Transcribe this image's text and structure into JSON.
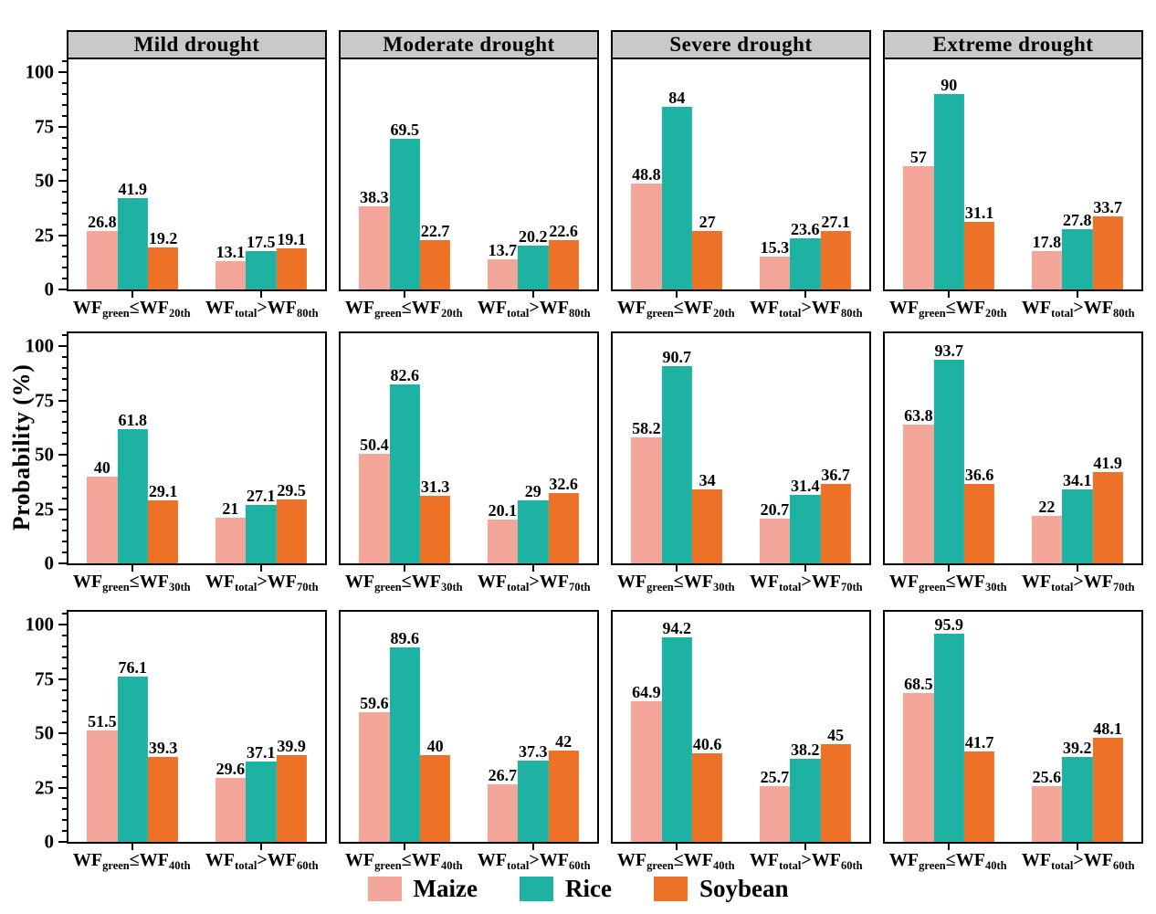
{
  "ylabel": "Probability (%)",
  "colors": {
    "maize": "#F4A69A",
    "rice": "#1DB2A2",
    "soybean": "#ED7127",
    "header_bg": "#C9C9C9",
    "border": "#000000"
  },
  "legend": [
    {
      "label": "Maize",
      "color": "#F4A69A"
    },
    {
      "label": "Rice",
      "color": "#1DB2A2"
    },
    {
      "label": "Soybean",
      "color": "#ED7127"
    }
  ],
  "column_titles": [
    "Mild drought",
    "Moderate drought",
    "Severe drought",
    "Extreme drought"
  ],
  "y_axis": {
    "major_ticks": [
      0,
      25,
      50,
      75,
      100
    ],
    "minor_step": 5,
    "tick_max": 105,
    "ylim": [
      0,
      106
    ]
  },
  "chart_data": [
    {
      "type": "bar",
      "row": 0,
      "col": 0,
      "title": "Mild drought",
      "ylim": [
        0,
        106
      ],
      "categories": [
        {
          "lhs_base": "WF",
          "lhs_sub": "green",
          "operator": "≤",
          "rhs_base": "WF",
          "rhs_sub": "20th"
        },
        {
          "lhs_base": "WF",
          "lhs_sub": "total",
          "operator": ">",
          "rhs_base": "WF",
          "rhs_sub": "80th"
        }
      ],
      "series": [
        {
          "name": "Maize",
          "values": [
            26.8,
            13.1
          ]
        },
        {
          "name": "Rice",
          "values": [
            41.9,
            17.5
          ]
        },
        {
          "name": "Soybean",
          "values": [
            19.2,
            19.1
          ]
        }
      ]
    },
    {
      "type": "bar",
      "row": 0,
      "col": 1,
      "title": "Moderate drought",
      "ylim": [
        0,
        106
      ],
      "categories": [
        {
          "lhs_base": "WF",
          "lhs_sub": "green",
          "operator": "≤",
          "rhs_base": "WF",
          "rhs_sub": "20th"
        },
        {
          "lhs_base": "WF",
          "lhs_sub": "total",
          "operator": ">",
          "rhs_base": "WF",
          "rhs_sub": "80th"
        }
      ],
      "series": [
        {
          "name": "Maize",
          "values": [
            38.3,
            13.7
          ]
        },
        {
          "name": "Rice",
          "values": [
            69.5,
            20.2
          ]
        },
        {
          "name": "Soybean",
          "values": [
            22.7,
            22.6
          ]
        }
      ]
    },
    {
      "type": "bar",
      "row": 0,
      "col": 2,
      "title": "Severe drought",
      "ylim": [
        0,
        106
      ],
      "categories": [
        {
          "lhs_base": "WF",
          "lhs_sub": "green",
          "operator": "≤",
          "rhs_base": "WF",
          "rhs_sub": "20th"
        },
        {
          "lhs_base": "WF",
          "lhs_sub": "total",
          "operator": ">",
          "rhs_base": "WF",
          "rhs_sub": "80th"
        }
      ],
      "series": [
        {
          "name": "Maize",
          "values": [
            48.8,
            15.3
          ]
        },
        {
          "name": "Rice",
          "values": [
            84,
            23.6
          ]
        },
        {
          "name": "Soybean",
          "values": [
            27,
            27.1
          ]
        }
      ]
    },
    {
      "type": "bar",
      "row": 0,
      "col": 3,
      "title": "Extreme drought",
      "ylim": [
        0,
        106
      ],
      "categories": [
        {
          "lhs_base": "WF",
          "lhs_sub": "green",
          "operator": "≤",
          "rhs_base": "WF",
          "rhs_sub": "20th"
        },
        {
          "lhs_base": "WF",
          "lhs_sub": "total",
          "operator": ">",
          "rhs_base": "WF",
          "rhs_sub": "80th"
        }
      ],
      "series": [
        {
          "name": "Maize",
          "values": [
            57,
            17.8
          ]
        },
        {
          "name": "Rice",
          "values": [
            90,
            27.8
          ]
        },
        {
          "name": "Soybean",
          "values": [
            31.1,
            33.7
          ]
        }
      ]
    },
    {
      "type": "bar",
      "row": 1,
      "col": 0,
      "title": "",
      "ylim": [
        0,
        106
      ],
      "categories": [
        {
          "lhs_base": "WF",
          "lhs_sub": "green",
          "operator": "≤",
          "rhs_base": "WF",
          "rhs_sub": "30th"
        },
        {
          "lhs_base": "WF",
          "lhs_sub": "total",
          "operator": ">",
          "rhs_base": "WF",
          "rhs_sub": "70th"
        }
      ],
      "series": [
        {
          "name": "Maize",
          "values": [
            40,
            21
          ]
        },
        {
          "name": "Rice",
          "values": [
            61.8,
            27.1
          ]
        },
        {
          "name": "Soybean",
          "values": [
            29.1,
            29.5
          ]
        }
      ]
    },
    {
      "type": "bar",
      "row": 1,
      "col": 1,
      "title": "",
      "ylim": [
        0,
        106
      ],
      "categories": [
        {
          "lhs_base": "WF",
          "lhs_sub": "green",
          "operator": "≤",
          "rhs_base": "WF",
          "rhs_sub": "30th"
        },
        {
          "lhs_base": "WF",
          "lhs_sub": "total",
          "operator": ">",
          "rhs_base": "WF",
          "rhs_sub": "70th"
        }
      ],
      "series": [
        {
          "name": "Maize",
          "values": [
            50.4,
            20.1
          ]
        },
        {
          "name": "Rice",
          "values": [
            82.6,
            29
          ]
        },
        {
          "name": "Soybean",
          "values": [
            31.3,
            32.6
          ]
        }
      ]
    },
    {
      "type": "bar",
      "row": 1,
      "col": 2,
      "title": "",
      "ylim": [
        0,
        106
      ],
      "categories": [
        {
          "lhs_base": "WF",
          "lhs_sub": "green",
          "operator": "≤",
          "rhs_base": "WF",
          "rhs_sub": "30th"
        },
        {
          "lhs_base": "WF",
          "lhs_sub": "total",
          "operator": ">",
          "rhs_base": "WF",
          "rhs_sub": "70th"
        }
      ],
      "series": [
        {
          "name": "Maize",
          "values": [
            58.2,
            20.7
          ]
        },
        {
          "name": "Rice",
          "values": [
            90.7,
            31.4
          ]
        },
        {
          "name": "Soybean",
          "values": [
            34,
            36.7
          ]
        }
      ]
    },
    {
      "type": "bar",
      "row": 1,
      "col": 3,
      "title": "",
      "ylim": [
        0,
        106
      ],
      "categories": [
        {
          "lhs_base": "WF",
          "lhs_sub": "green",
          "operator": "≤",
          "rhs_base": "WF",
          "rhs_sub": "30th"
        },
        {
          "lhs_base": "WF",
          "lhs_sub": "total",
          "operator": ">",
          "rhs_base": "WF",
          "rhs_sub": "70th"
        }
      ],
      "series": [
        {
          "name": "Maize",
          "values": [
            63.8,
            22
          ]
        },
        {
          "name": "Rice",
          "values": [
            93.7,
            34.1
          ]
        },
        {
          "name": "Soybean",
          "values": [
            36.6,
            41.9
          ]
        }
      ]
    },
    {
      "type": "bar",
      "row": 2,
      "col": 0,
      "title": "",
      "ylim": [
        0,
        106
      ],
      "categories": [
        {
          "lhs_base": "WF",
          "lhs_sub": "green",
          "operator": "≤",
          "rhs_base": "WF",
          "rhs_sub": "40th"
        },
        {
          "lhs_base": "WF",
          "lhs_sub": "total",
          "operator": ">",
          "rhs_base": "WF",
          "rhs_sub": "60th"
        }
      ],
      "series": [
        {
          "name": "Maize",
          "values": [
            51.5,
            29.6
          ]
        },
        {
          "name": "Rice",
          "values": [
            76.1,
            37.1
          ]
        },
        {
          "name": "Soybean",
          "values": [
            39.3,
            39.9
          ]
        }
      ]
    },
    {
      "type": "bar",
      "row": 2,
      "col": 1,
      "title": "",
      "ylim": [
        0,
        106
      ],
      "categories": [
        {
          "lhs_base": "WF",
          "lhs_sub": "green",
          "operator": "≤",
          "rhs_base": "WF",
          "rhs_sub": "40th"
        },
        {
          "lhs_base": "WF",
          "lhs_sub": "total",
          "operator": ">",
          "rhs_base": "WF",
          "rhs_sub": "60th"
        }
      ],
      "series": [
        {
          "name": "Maize",
          "values": [
            59.6,
            26.7
          ]
        },
        {
          "name": "Rice",
          "values": [
            89.6,
            37.3
          ]
        },
        {
          "name": "Soybean",
          "values": [
            40,
            42
          ]
        }
      ]
    },
    {
      "type": "bar",
      "row": 2,
      "col": 2,
      "title": "",
      "ylim": [
        0,
        106
      ],
      "categories": [
        {
          "lhs_base": "WF",
          "lhs_sub": "green",
          "operator": "≤",
          "rhs_base": "WF",
          "rhs_sub": "40th"
        },
        {
          "lhs_base": "WF",
          "lhs_sub": "total",
          "operator": ">",
          "rhs_base": "WF",
          "rhs_sub": "60th"
        }
      ],
      "series": [
        {
          "name": "Maize",
          "values": [
            64.9,
            25.7
          ]
        },
        {
          "name": "Rice",
          "values": [
            94.2,
            38.2
          ]
        },
        {
          "name": "Soybean",
          "values": [
            40.6,
            45
          ]
        }
      ]
    },
    {
      "type": "bar",
      "row": 2,
      "col": 3,
      "title": "",
      "ylim": [
        0,
        106
      ],
      "categories": [
        {
          "lhs_base": "WF",
          "lhs_sub": "green",
          "operator": "≤",
          "rhs_base": "WF",
          "rhs_sub": "40th"
        },
        {
          "lhs_base": "WF",
          "lhs_sub": "total",
          "operator": ">",
          "rhs_base": "WF",
          "rhs_sub": "60th"
        }
      ],
      "series": [
        {
          "name": "Maize",
          "values": [
            68.5,
            25.6
          ]
        },
        {
          "name": "Rice",
          "values": [
            95.9,
            39.2
          ]
        },
        {
          "name": "Soybean",
          "values": [
            41.7,
            48.1
          ]
        }
      ]
    }
  ]
}
